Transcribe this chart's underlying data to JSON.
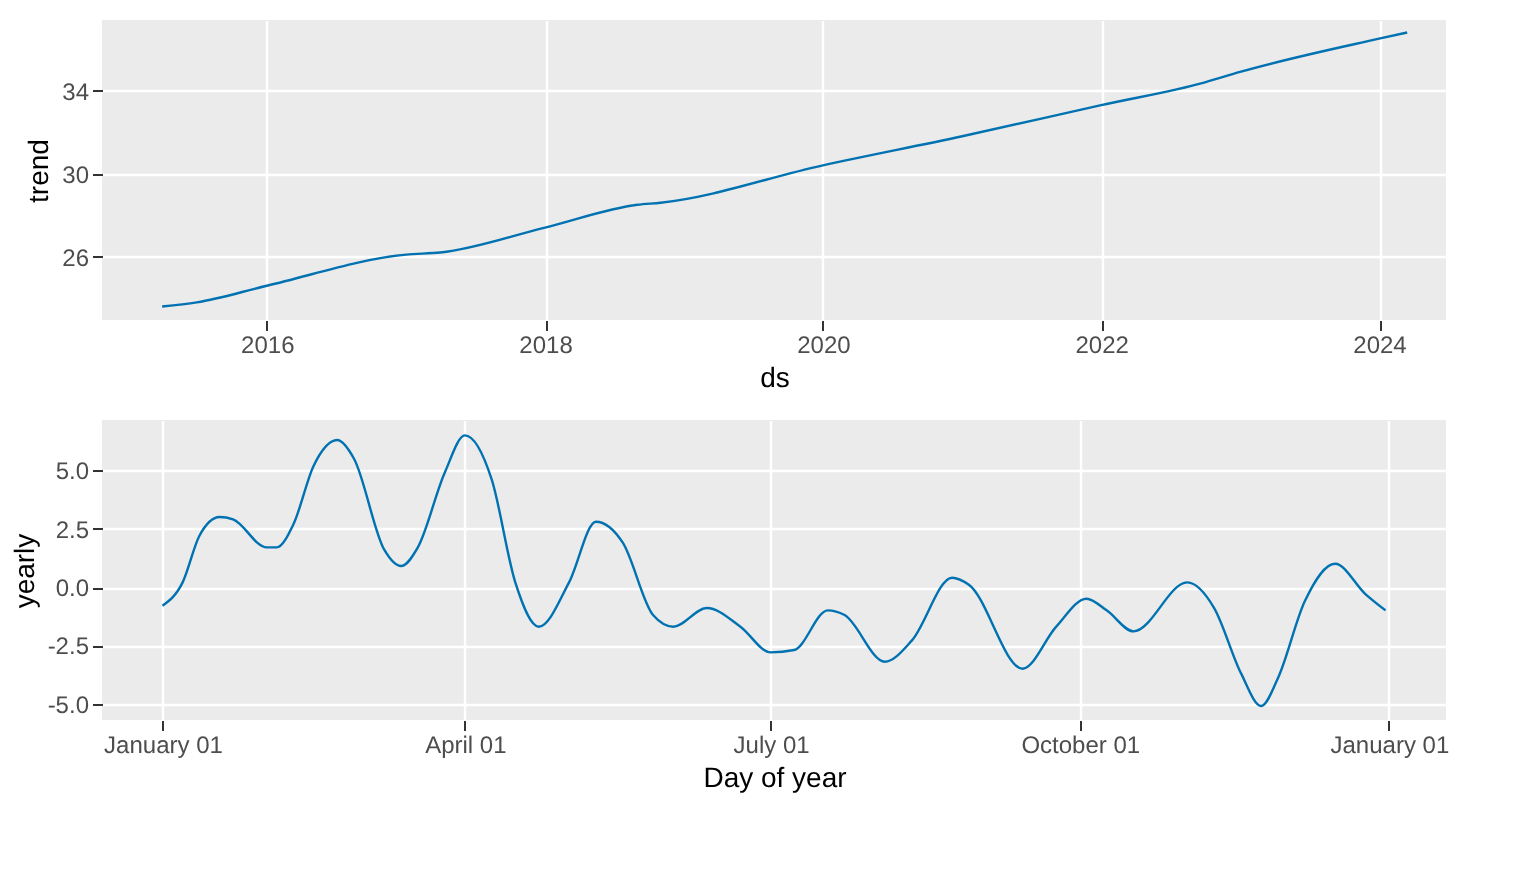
{
  "chart_data": [
    {
      "type": "line",
      "xlabel": "ds",
      "ylabel": "trend",
      "grid": true,
      "x": [
        "2015-04-01",
        "2015-07-01",
        "2016-01-01",
        "2017-01-01",
        "2017-04-01",
        "2018-01-01",
        "2018-09-01",
        "2018-11-01",
        "2020-01-01",
        "2021-01-01",
        "2022-01-01",
        "2022-10-01",
        "2023-01-01",
        "2024-01-01",
        "2024-03-15"
      ],
      "series": [
        {
          "color": "#0072b2",
          "values": [
            23.6,
            23.8,
            24.6,
            26.1,
            26.2,
            27.4,
            28.5,
            28.6,
            30.4,
            31.8,
            33.3,
            34.4,
            34.9,
            36.5,
            36.8
          ]
        }
      ],
      "xlim": [
        "2014-10-25",
        "2024-06-25"
      ],
      "xticks": [
        "2016",
        "2018",
        "2020",
        "2022",
        "2024"
      ],
      "ylim": [
        22.95,
        37.4
      ],
      "yticks": [
        26,
        30,
        34
      ]
    },
    {
      "type": "line",
      "xlabel": "Day of year",
      "ylabel": "yearly",
      "grid": true,
      "x": [
        "2017-01-01",
        "2017-01-07",
        "2017-01-12",
        "2017-01-18",
        "2017-01-22",
        "2017-02-01",
        "2017-02-04",
        "2017-02-09",
        "2017-02-15",
        "2017-02-22",
        "2017-02-27",
        "2017-03-08",
        "2017-03-13",
        "2017-03-18",
        "2017-03-26",
        "2017-04-01",
        "2017-04-09",
        "2017-04-16",
        "2017-04-23",
        "2017-05-02",
        "2017-05-10",
        "2017-05-18",
        "2017-05-27",
        "2017-06-02",
        "2017-06-12",
        "2017-06-22",
        "2017-07-01",
        "2017-07-08",
        "2017-07-18",
        "2017-07-23",
        "2017-08-04",
        "2017-08-12",
        "2017-08-24",
        "2017-08-29",
        "2017-09-14",
        "2017-09-24",
        "2017-10-03",
        "2017-10-09",
        "2017-10-17",
        "2017-11-02",
        "2017-11-10",
        "2017-11-18",
        "2017-11-24",
        "2017-11-29",
        "2017-12-07",
        "2017-12-16",
        "2017-12-25",
        "2017-12-31"
      ],
      "series": [
        {
          "color": "#0072b2",
          "values": [
            -0.8,
            0.2,
            2.2,
            3.0,
            2.9,
            1.7,
            1.7,
            2.7,
            5.2,
            6.3,
            5.5,
            1.6,
            0.9,
            1.7,
            4.9,
            6.5,
            4.6,
            0.2,
            -1.7,
            0.2,
            2.8,
            1.9,
            -1.2,
            -1.7,
            -0.9,
            -1.7,
            -2.8,
            -2.7,
            -1.0,
            -1.2,
            -3.2,
            -2.3,
            0.4,
            0.1,
            -3.5,
            -1.7,
            -0.5,
            -1.0,
            -1.9,
            0.2,
            -0.9,
            -3.7,
            -5.1,
            -3.9,
            -0.6,
            1.0,
            -0.3,
            -1.0
          ]
        }
      ],
      "xlim": [
        "2016-12-14",
        "2018-01-18"
      ],
      "xticks": [
        {
          "value": "2017-01-01",
          "label": "January 01"
        },
        {
          "value": "2017-04-01",
          "label": "April 01"
        },
        {
          "value": "2017-07-01",
          "label": "July 01"
        },
        {
          "value": "2017-10-01",
          "label": "October 01"
        },
        {
          "value": "2018-01-01",
          "label": "January 01"
        }
      ],
      "ylim": [
        -5.7,
        7.16
      ],
      "yticks": [
        {
          "value": 5,
          "label": "5.0"
        },
        {
          "value": 2.5,
          "label": "2.5"
        },
        {
          "value": 0,
          "label": "0.0"
        },
        {
          "value": -2.5,
          "label": "-2.5"
        },
        {
          "value": -5,
          "label": "-5.0"
        }
      ]
    }
  ]
}
